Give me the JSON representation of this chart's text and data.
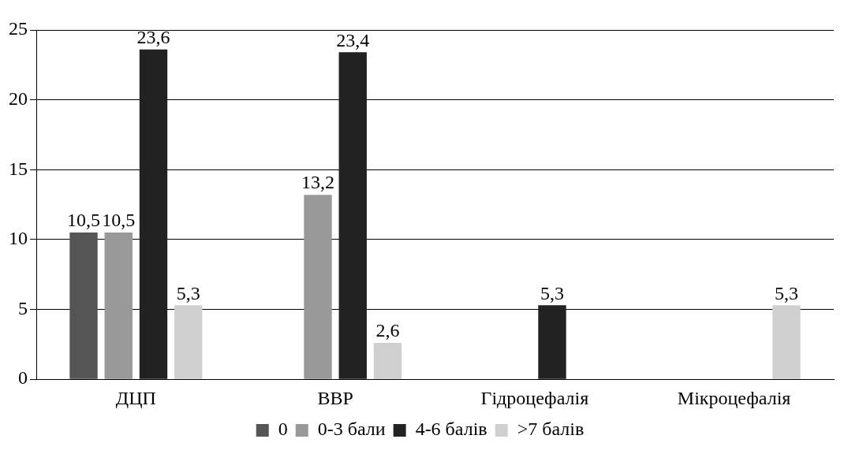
{
  "chart_data": {
    "type": "bar",
    "categories": [
      "ДЦП",
      "ВВР",
      "Гідроцефалія",
      "Мікроцефалія"
    ],
    "series": [
      {
        "name": "0",
        "color": "#555555",
        "values": [
          10.5,
          null,
          null,
          null
        ],
        "value_labels": [
          "10,5",
          null,
          null,
          null
        ]
      },
      {
        "name": "0-3 бали",
        "color": "#999999",
        "values": [
          10.5,
          13.2,
          null,
          null
        ],
        "value_labels": [
          "10,5",
          "13,2",
          null,
          null
        ]
      },
      {
        "name": "4-6 балів",
        "color": "#222222",
        "values": [
          23.6,
          23.4,
          5.3,
          null
        ],
        "value_labels": [
          "23,6",
          "23,4",
          "5,3",
          null
        ]
      },
      {
        "name": ">7 балів",
        "color": "#d0d0d0",
        "values": [
          5.3,
          2.6,
          null,
          5.3
        ],
        "value_labels": [
          "5,3",
          "2,6",
          null,
          "5,3"
        ]
      }
    ],
    "ylim": [
      0,
      25
    ],
    "yticks": [
      0,
      5,
      10,
      15,
      20,
      25
    ],
    "grid": "y",
    "legend": "bottom"
  }
}
